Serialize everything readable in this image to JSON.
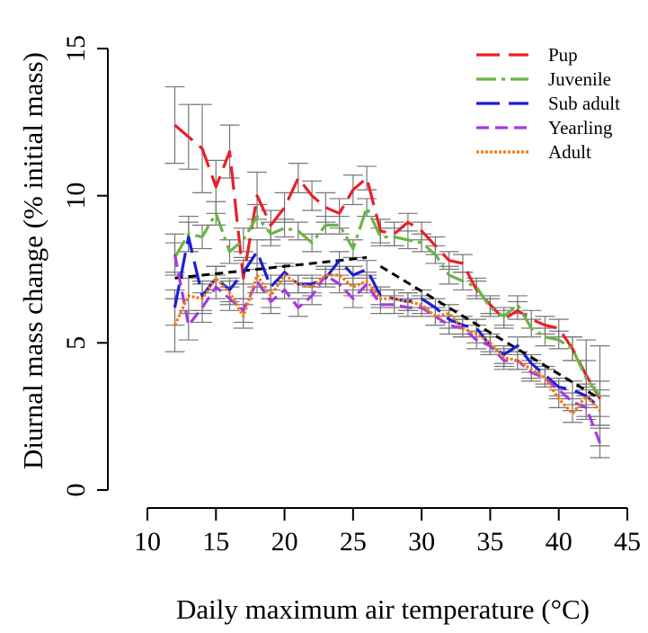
{
  "chart_data": {
    "type": "line",
    "title": "",
    "xlabel": "Daily maximum air temperature (°C)",
    "ylabel": "Diurnal mass change  (% initial mass)",
    "xlim": [
      10,
      45
    ],
    "ylim": [
      0,
      15
    ],
    "xticks": [
      "10",
      "15",
      "20",
      "25",
      "30",
      "35",
      "40",
      "45"
    ],
    "yticks": [
      "0",
      "5",
      "10",
      "15"
    ],
    "legend_position": "top-right",
    "grid": false,
    "x": [
      12,
      13,
      14,
      15,
      16,
      17,
      18,
      19,
      20,
      21,
      22,
      23,
      24,
      25,
      26,
      27,
      28,
      29,
      30,
      31,
      32,
      33,
      34,
      35,
      36,
      37,
      38,
      39,
      40,
      41,
      42,
      43
    ],
    "series": [
      {
        "name": "Pup",
        "color": "#e8202a",
        "dash": "dashed-long",
        "values": [
          12.4,
          12.0,
          11.6,
          10.3,
          11.5,
          7.2,
          10.0,
          9.0,
          9.6,
          10.6,
          10.0,
          9.6,
          9.4,
          10.2,
          10.6,
          8.8,
          8.7,
          9.1,
          8.8,
          8.3,
          7.8,
          7.7,
          6.8,
          6.3,
          5.8,
          6.1,
          5.8,
          5.6,
          5.5,
          4.8,
          3.9,
          3.1
        ],
        "err": [
          1.3,
          1.1,
          1.5,
          0.9,
          0.9,
          0.7,
          0.8,
          0.5,
          0.5,
          0.5,
          0.5,
          0.5,
          0.5,
          0.5,
          0.4,
          0.4,
          0.4,
          0.3,
          0.3,
          0.3,
          0.3,
          0.3,
          0.3,
          0.3,
          0.3,
          0.3,
          0.3,
          0.3,
          0.3,
          0.4,
          0.5,
          0.6
        ]
      },
      {
        "name": "Juvenile",
        "color": "#6ab545",
        "dash": "dash-dot",
        "values": [
          7.9,
          8.7,
          8.6,
          9.4,
          8.1,
          8.5,
          9.3,
          8.7,
          8.9,
          8.8,
          8.4,
          9.0,
          9.0,
          8.2,
          9.6,
          8.6,
          8.6,
          8.5,
          8.4,
          8.0,
          7.3,
          7.1,
          6.9,
          6.2,
          5.9,
          6.3,
          5.5,
          5.2,
          5.1,
          4.8,
          3.8,
          3.2
        ],
        "err": [
          0.5,
          0.6,
          0.4,
          0.4,
          0.4,
          0.4,
          0.4,
          0.4,
          0.3,
          0.3,
          0.3,
          0.3,
          0.3,
          0.3,
          0.3,
          0.3,
          0.3,
          0.3,
          0.3,
          0.3,
          0.3,
          0.3,
          0.3,
          0.3,
          0.3,
          0.3,
          0.3,
          0.3,
          0.3,
          0.4,
          1.3,
          1.7
        ]
      },
      {
        "name": "Sub adult",
        "color": "#1d1ed6",
        "dash": "dashed-long",
        "values": [
          6.2,
          8.6,
          6.6,
          7.2,
          6.8,
          7.4,
          8.1,
          6.9,
          7.4,
          7.0,
          7.0,
          7.2,
          7.8,
          7.3,
          7.5,
          6.6,
          6.5,
          6.4,
          6.5,
          6.2,
          5.8,
          5.6,
          5.5,
          4.9,
          4.6,
          4.9,
          4.3,
          3.9,
          3.5,
          3.4,
          3.2,
          2.8
        ],
        "err": [
          0.6,
          0.5,
          0.5,
          0.4,
          0.4,
          0.4,
          0.4,
          0.4,
          0.3,
          0.3,
          0.3,
          0.3,
          0.3,
          0.3,
          0.3,
          0.3,
          0.3,
          0.3,
          0.3,
          0.3,
          0.3,
          0.3,
          0.3,
          0.3,
          0.3,
          0.3,
          0.3,
          0.3,
          0.3,
          0.3,
          0.4,
          0.6
        ]
      },
      {
        "name": "Yearling",
        "color": "#a63ae0",
        "dash": "dashed",
        "values": [
          8.0,
          5.6,
          6.2,
          6.9,
          6.5,
          6.1,
          7.1,
          6.4,
          6.8,
          6.2,
          6.6,
          7.3,
          7.0,
          6.5,
          7.0,
          6.3,
          6.3,
          6.2,
          6.2,
          5.9,
          5.6,
          5.5,
          5.1,
          4.9,
          4.4,
          4.4,
          4.0,
          3.8,
          3.4,
          3.0,
          2.8,
          1.6
        ],
        "err": [
          0.7,
          0.5,
          0.5,
          0.4,
          0.4,
          0.4,
          0.4,
          0.4,
          0.3,
          0.3,
          0.3,
          0.3,
          0.3,
          0.3,
          0.3,
          0.3,
          0.3,
          0.3,
          0.3,
          0.3,
          0.3,
          0.3,
          0.3,
          0.3,
          0.3,
          0.3,
          0.3,
          0.3,
          0.3,
          0.3,
          0.4,
          0.5
        ]
      },
      {
        "name": "Adult",
        "color": "#f07818",
        "dash": "dotted",
        "values": [
          5.6,
          6.6,
          6.5,
          7.2,
          6.7,
          5.9,
          7.3,
          6.6,
          7.3,
          7.0,
          6.9,
          7.3,
          7.3,
          6.9,
          7.1,
          6.5,
          6.5,
          6.4,
          6.3,
          5.9,
          6.0,
          5.5,
          5.3,
          5.0,
          4.5,
          4.4,
          4.1,
          3.8,
          3.1,
          2.6,
          3.2,
          2.7
        ],
        "err": [
          0.9,
          0.6,
          0.5,
          0.4,
          0.4,
          0.4,
          0.4,
          0.4,
          0.3,
          0.3,
          0.3,
          0.3,
          0.3,
          0.3,
          0.3,
          0.3,
          0.3,
          0.3,
          0.3,
          0.3,
          0.3,
          0.3,
          0.3,
          0.3,
          0.3,
          0.3,
          0.3,
          0.3,
          0.3,
          0.3,
          0.3,
          0.5
        ]
      }
    ],
    "fit_lines": [
      {
        "color": "#000000",
        "x": [
          12,
          26
        ],
        "y": [
          7.2,
          7.9
        ]
      },
      {
        "color": "#000000",
        "x": [
          27,
          43
        ],
        "y": [
          7.6,
          3.1
        ]
      }
    ]
  }
}
